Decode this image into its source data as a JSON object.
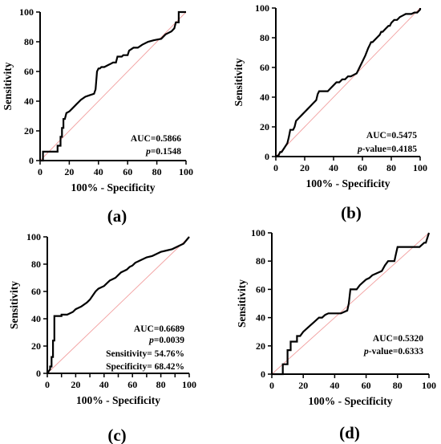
{
  "chart_data": [
    {
      "type": "line",
      "panel": "(a)",
      "xlabel": "100% - Specificity",
      "ylabel": "Sensitivity",
      "xlim": [
        0,
        100
      ],
      "ylim": [
        0,
        100
      ],
      "xticks": [
        "0",
        "20",
        "40",
        "60",
        "80",
        "100"
      ],
      "yticks": [
        "0",
        "20",
        "40",
        "60",
        "80",
        "100"
      ],
      "reference_line": true,
      "annotations": [
        {
          "prefix": "AUC=",
          "italic": "",
          "value": "0.5866"
        },
        {
          "prefix": "",
          "italic": "p",
          "value": "=0.1548"
        }
      ],
      "series": [
        {
          "x": [
            0,
            2,
            2,
            12,
            12,
            14,
            14,
            15,
            15,
            16,
            16,
            17,
            18,
            20,
            22,
            25,
            28,
            31,
            34,
            37,
            38,
            39,
            40,
            41,
            42,
            44,
            46,
            48,
            50,
            52,
            53,
            56,
            57,
            60,
            61,
            64,
            67,
            70,
            74,
            78,
            83,
            86,
            90,
            92,
            93,
            95,
            95,
            100
          ],
          "y": [
            0,
            0,
            6,
            6,
            10,
            10,
            16,
            16,
            22,
            22,
            28,
            28,
            32,
            33,
            35,
            38,
            41,
            43,
            44,
            45,
            48,
            60,
            62,
            62,
            63,
            63,
            64,
            65,
            66,
            66,
            70,
            70,
            71,
            71,
            74,
            76,
            76,
            78,
            80,
            81,
            82,
            85,
            87,
            89,
            93,
            93,
            100,
            100
          ]
        }
      ]
    },
    {
      "type": "line",
      "panel": "(b)",
      "xlabel": "100% - Specificity",
      "ylabel": "Sensitivity",
      "xlim": [
        0,
        100
      ],
      "ylim": [
        0,
        100
      ],
      "xticks": [
        "0",
        "20",
        "40",
        "60",
        "80",
        "100"
      ],
      "yticks": [
        "0",
        "20",
        "40",
        "60",
        "80",
        "100"
      ],
      "reference_line": true,
      "annotations": [
        {
          "prefix": "AUC=",
          "italic": "",
          "value": "0.5475"
        },
        {
          "prefix": "",
          "italic": "p",
          "value": "-value=0.4185"
        }
      ],
      "series": [
        {
          "x": [
            0,
            2,
            3,
            4,
            6,
            8,
            9,
            10,
            12,
            13,
            14,
            16,
            18,
            20,
            22,
            24,
            26,
            28,
            29,
            30,
            32,
            34,
            36,
            38,
            40,
            42,
            44,
            46,
            48,
            50,
            52,
            54,
            56,
            58,
            60,
            62,
            64,
            65,
            66,
            67,
            68,
            70,
            72,
            73,
            74,
            76,
            78,
            79,
            80,
            82,
            84,
            86,
            88,
            90,
            92,
            94,
            96,
            98,
            100,
            100
          ],
          "y": [
            0,
            1,
            3,
            3,
            6,
            9,
            13,
            18,
            18,
            20,
            24,
            26,
            28,
            30,
            32,
            34,
            36,
            38,
            42,
            44,
            44,
            44,
            44,
            46,
            48,
            50,
            50,
            52,
            52,
            54,
            54,
            55,
            56,
            60,
            64,
            68,
            73,
            75,
            77,
            77,
            78,
            80,
            82,
            84,
            84,
            86,
            88,
            88,
            90,
            92,
            92,
            94,
            95,
            96,
            96,
            96,
            97,
            97,
            99,
            100
          ]
        }
      ]
    },
    {
      "type": "line",
      "panel": "(c)",
      "xlabel": "100% - Specificity",
      "ylabel": "Sensitivity",
      "xlim": [
        0,
        100
      ],
      "ylim": [
        0,
        100
      ],
      "xticks": [
        "0",
        "10",
        "20",
        "30",
        "40",
        "50",
        "60",
        "70",
        "80",
        "90",
        "100"
      ],
      "xticklabels_shown": [
        "0",
        "20",
        "40",
        "60",
        "80",
        "100"
      ],
      "yticks": [
        "0",
        "20",
        "40",
        "60",
        "80",
        "100"
      ],
      "reference_line": true,
      "annotations": [
        {
          "prefix": "AUC=",
          "italic": "",
          "value": "0.6689"
        },
        {
          "prefix": "",
          "italic": "p",
          "value": "=0.0039"
        },
        {
          "prefix": "Sensitivity= ",
          "italic": "",
          "value": "54.76%"
        },
        {
          "prefix": "Specificity= ",
          "italic": "",
          "value": "68.42%"
        }
      ],
      "series": [
        {
          "x": [
            0,
            2,
            2,
            3,
            3,
            4,
            4,
            5,
            5,
            10,
            10,
            14,
            18,
            20,
            24,
            28,
            30,
            32,
            34,
            36,
            38,
            40,
            42,
            44,
            46,
            48,
            50,
            52,
            54,
            56,
            58,
            60,
            62,
            66,
            70,
            74,
            78,
            80,
            84,
            88,
            92,
            96,
            100
          ],
          "y": [
            0,
            3,
            5,
            5,
            12,
            12,
            24,
            24,
            42,
            42,
            43,
            43,
            45,
            47,
            49,
            52,
            54,
            57,
            60,
            62,
            63,
            64,
            66,
            68,
            69,
            70,
            72,
            74,
            75,
            76,
            78,
            79,
            81,
            83,
            85,
            86,
            88,
            89,
            90,
            91,
            93,
            95,
            100
          ]
        }
      ]
    },
    {
      "type": "line",
      "panel": "(d)",
      "xlabel": "100% - Specificity",
      "ylabel": "Sensitivity",
      "xlim": [
        0,
        100
      ],
      "ylim": [
        0,
        100
      ],
      "xticks": [
        "0",
        "20",
        "40",
        "60",
        "80",
        "100"
      ],
      "yticks": [
        "0",
        "20",
        "40",
        "60",
        "80",
        "100"
      ],
      "reference_line": true,
      "annotations": [
        {
          "prefix": "AUC=",
          "italic": "",
          "value": "0.5320"
        },
        {
          "prefix": "",
          "italic": "p",
          "value": "-value=0.6333"
        }
      ],
      "series": [
        {
          "x": [
            0,
            7,
            7,
            10,
            10,
            12,
            12,
            16,
            16,
            18,
            18,
            20,
            22,
            24,
            27,
            30,
            32,
            34,
            36,
            38,
            40,
            44,
            48,
            49,
            50,
            52,
            54,
            56,
            58,
            60,
            62,
            64,
            66,
            68,
            70,
            72,
            74,
            76,
            78,
            79,
            80,
            82,
            86,
            90,
            94,
            97,
            98,
            100
          ],
          "y": [
            0,
            0,
            7,
            7,
            17,
            17,
            23,
            23,
            27,
            27,
            27,
            30,
            32,
            34,
            37,
            40,
            40,
            42,
            43,
            43,
            43,
            43,
            45,
            50,
            60,
            60,
            60,
            63,
            65,
            67,
            68,
            70,
            71,
            72,
            73,
            77,
            80,
            80,
            80,
            85,
            90,
            90,
            90,
            90,
            90,
            93,
            93,
            100
          ]
        }
      ]
    }
  ]
}
